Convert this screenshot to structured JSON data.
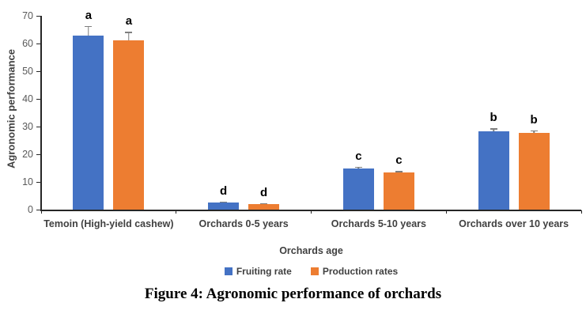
{
  "figure": {
    "caption": "Figure 4: Agronomic performance of orchards"
  },
  "chart_data": {
    "type": "bar",
    "title": "",
    "xlabel": "Orchards age",
    "ylabel": "Agronomic performance",
    "ylim": [
      0,
      70
    ],
    "yticks": [
      0,
      10,
      20,
      30,
      40,
      50,
      60,
      70
    ],
    "grid": false,
    "legend_position": "bottom",
    "categories": [
      "Temoin (High-yield cashew)",
      "Orchards 0-5 years",
      "Orchards 5-10 years",
      "Orchards over 10 years"
    ],
    "series": [
      {
        "name": "Fruiting rate",
        "color": "#4472C4",
        "values": [
          63.0,
          2.6,
          15.0,
          28.2
        ],
        "pos_errors": [
          3.3,
          0.4,
          0.5,
          1.1
        ],
        "sig_letters": [
          "a",
          "d",
          "c",
          "b"
        ]
      },
      {
        "name": "Production rates",
        "color": "#ED7D31",
        "values": [
          61.2,
          2.0,
          13.5,
          27.8
        ],
        "pos_errors": [
          3.0,
          0.4,
          0.5,
          0.9
        ],
        "sig_letters": [
          "a",
          "d",
          "c",
          "b"
        ]
      }
    ],
    "error_bar_color": "#7F7F7F",
    "axis_color": "#262626",
    "tick_label_color": "#595959",
    "label_color": "#404040"
  }
}
